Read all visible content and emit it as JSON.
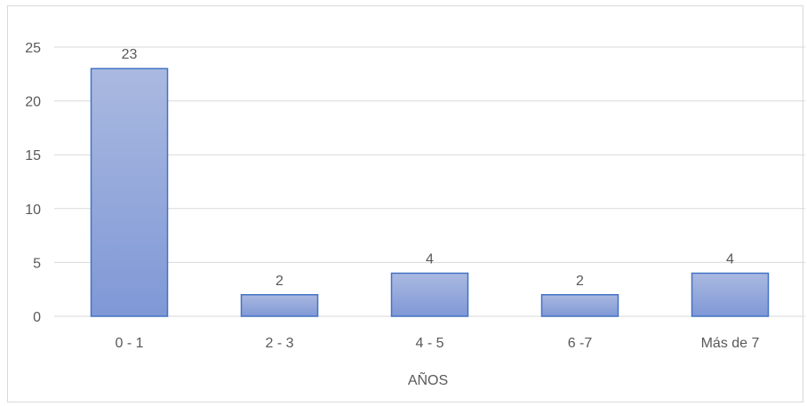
{
  "chart_data": {
    "type": "bar",
    "categories": [
      "0 - 1",
      "2 - 3",
      "4 - 5",
      "6 -7",
      "Más de 7"
    ],
    "values": [
      23,
      2,
      4,
      2,
      4
    ],
    "data_labels": [
      "23",
      "2",
      "4",
      "2",
      "4"
    ],
    "xlabel": "AÑOS",
    "ylabel": "",
    "ylim": [
      0,
      25
    ],
    "yticks": [
      0,
      5,
      10,
      15,
      20,
      25
    ],
    "ytick_labels": [
      "0",
      "5",
      "10",
      "15",
      "20",
      "25"
    ],
    "grid": true,
    "legend": "none"
  },
  "colors": {
    "bar_fill_top": "#aab9e0",
    "bar_fill_bottom": "#7f98d6",
    "bar_stroke": "#4472c4",
    "gridline": "#d9d9d9",
    "text": "#595959"
  }
}
